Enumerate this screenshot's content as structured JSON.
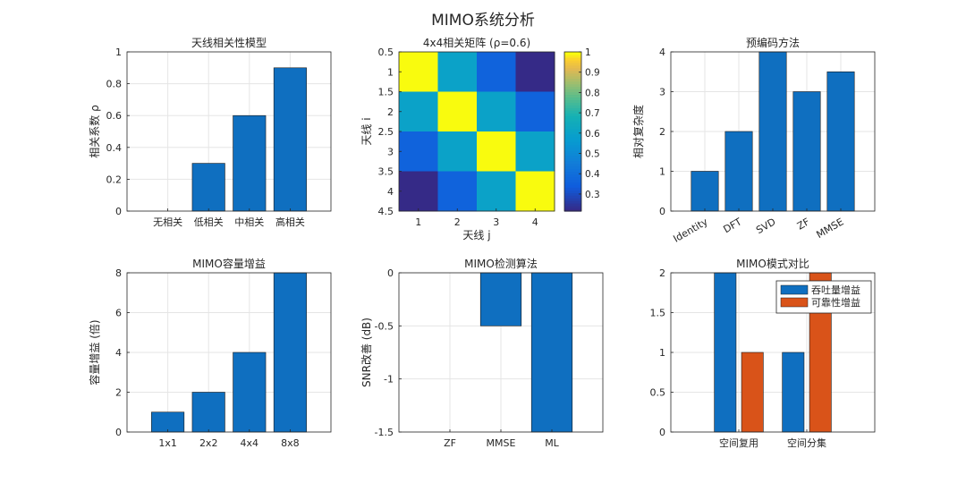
{
  "figure_title": "MIMO系统分析",
  "colors": {
    "bar_blue": "#0F6FC0",
    "bar_orange": "#D95319",
    "grid": "#e5e5e5",
    "axis": "#262626",
    "edge": "#1a1a1a"
  },
  "chart_data": [
    {
      "id": "corr-model",
      "type": "bar",
      "title": "天线相关性模型",
      "xlabel": "",
      "ylabel": "相关系数 ρ",
      "categories": [
        "无相关",
        "低相关",
        "中相关",
        "高相关"
      ],
      "values": [
        0,
        0.3,
        0.6,
        0.9
      ],
      "ylim": [
        0,
        1
      ],
      "yticks": [
        "0",
        "0.2",
        "0.4",
        "0.6",
        "0.8",
        "1"
      ],
      "ytick_values": [
        0,
        0.2,
        0.4,
        0.6,
        0.8,
        1
      ],
      "grid": true
    },
    {
      "id": "corr-matrix",
      "type": "heatmap",
      "title": "4x4相关矩阵 (ρ=0.6)",
      "xlabel": "天线 j",
      "ylabel": "天线 i",
      "matrix": [
        [
          1,
          0.6,
          0.36,
          0.216
        ],
        [
          0.6,
          1,
          0.6,
          0.36
        ],
        [
          0.36,
          0.6,
          1,
          0.6
        ],
        [
          0.216,
          0.36,
          0.6,
          1
        ]
      ],
      "xticks": [
        "1",
        "2",
        "3",
        "4"
      ],
      "yticks": [
        "0.5",
        "1",
        "1.5",
        "2",
        "2.5",
        "3",
        "3.5",
        "4",
        "4.5"
      ],
      "colorbar_ticks": [
        "0.3",
        "0.4",
        "0.5",
        "0.6",
        "0.7",
        "0.8",
        "0.9",
        "1"
      ],
      "colorbar_values": [
        0.3,
        0.4,
        0.5,
        0.6,
        0.7,
        0.8,
        0.9,
        1
      ],
      "clim": [
        0.216,
        1
      ]
    },
    {
      "id": "precoding",
      "type": "bar",
      "title": "预编码方法",
      "xlabel": "",
      "ylabel": "相对复杂度",
      "categories": [
        "Identity",
        "DFT",
        "SVD",
        "ZF",
        "MMSE"
      ],
      "values": [
        1,
        2,
        4,
        3,
        3.5
      ],
      "ylim": [
        0,
        4
      ],
      "yticks": [
        "0",
        "1",
        "2",
        "3",
        "4"
      ],
      "ytick_values": [
        0,
        1,
        2,
        3,
        4
      ],
      "rotate_xticks": true,
      "grid": true
    },
    {
      "id": "capacity",
      "type": "bar",
      "title": "MIMO容量增益",
      "xlabel": "",
      "ylabel": "容量增益 (倍)",
      "categories": [
        "1x1",
        "2x2",
        "4x4",
        "8x8"
      ],
      "values": [
        1,
        2,
        4,
        8
      ],
      "ylim": [
        0,
        8
      ],
      "yticks": [
        "0",
        "2",
        "4",
        "6",
        "8"
      ],
      "ytick_values": [
        0,
        2,
        4,
        6,
        8
      ],
      "grid": true
    },
    {
      "id": "detection",
      "type": "bar",
      "title": "MIMO检测算法",
      "xlabel": "",
      "ylabel": "SNR改善 (dB)",
      "categories": [
        "ZF",
        "MMSE",
        "ML"
      ],
      "values": [
        0,
        -0.5,
        -1.5
      ],
      "ylim": [
        -1.5,
        0
      ],
      "yticks": [
        "-1.5",
        "-1",
        "-0.5",
        "0"
      ],
      "ytick_values": [
        -1.5,
        -1,
        -0.5,
        0
      ],
      "grid": true
    },
    {
      "id": "mode-compare",
      "type": "bar",
      "title": "MIMO模式对比",
      "xlabel": "",
      "ylabel": "",
      "categories": [
        "空间复用",
        "空间分集"
      ],
      "series": [
        {
          "name": "吞吐量增益",
          "values": [
            2,
            1
          ]
        },
        {
          "name": "可靠性增益",
          "values": [
            1,
            2
          ]
        }
      ],
      "ylim": [
        0,
        2
      ],
      "yticks": [
        "0",
        "0.5",
        "1",
        "1.5",
        "2"
      ],
      "ytick_values": [
        0,
        0.5,
        1,
        1.5,
        2
      ],
      "legend": "top-right",
      "grid": true
    }
  ]
}
